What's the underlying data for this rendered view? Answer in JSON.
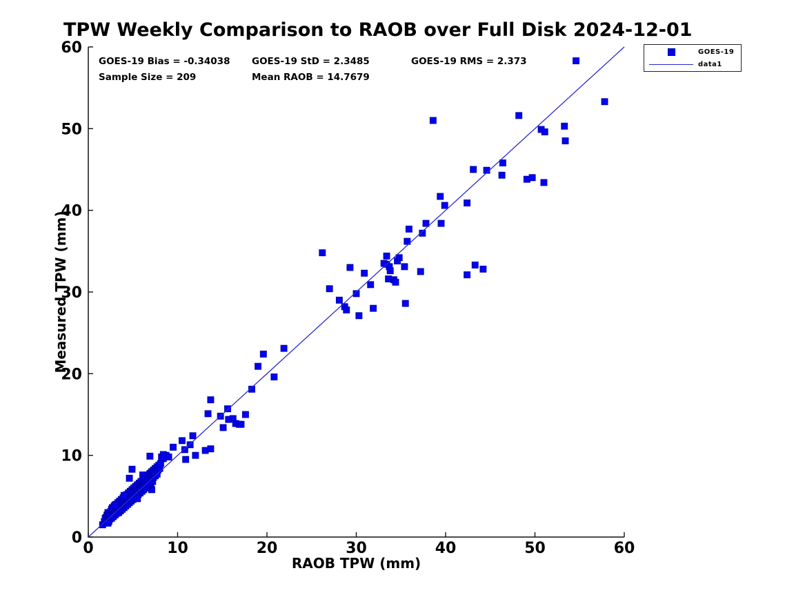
{
  "title": "TPW Weekly Comparison to RAOB over Full Disk 2024-12-01",
  "stats": {
    "bias": "GOES-19 Bias = -0.34038",
    "std": "GOES-19 StD = 2.3485",
    "rms": "GOES-19 RMS = 2.373",
    "sample": "Sample Size = 209",
    "mean_raob": "Mean RAOB = 14.7679"
  },
  "legend": {
    "entries": [
      {
        "label": "GOES-19",
        "symbol": "square-marker"
      },
      {
        "label": "data1",
        "symbol": "line"
      }
    ]
  },
  "colors": {
    "marker": "#0202f0",
    "marker_edge": "#0000a8",
    "line": "#2929d4",
    "axis": "#111111",
    "text": "#000000"
  },
  "chart_data": {
    "type": "scatter",
    "title": "TPW Weekly Comparison to RAOB over Full Disk 2024-12-01",
    "xlabel": "RAOB TPW (mm)",
    "ylabel": "Measured TPW (mm)",
    "xlim": [
      0,
      60
    ],
    "ylim": [
      0,
      60
    ],
    "xticks": [
      0,
      10,
      20,
      30,
      40,
      50,
      60
    ],
    "yticks": [
      0,
      10,
      20,
      30,
      40,
      50,
      60
    ],
    "grid": false,
    "legend_position": "outside-top-right",
    "stats_values": {
      "bias": -0.34038,
      "std": 2.3485,
      "rms": 2.373,
      "sample_size": 209,
      "mean_raob": 14.7679
    },
    "series": [
      {
        "name": "GOES-19",
        "type": "scatter",
        "marker": "square",
        "marker_size_px": 9,
        "color": "#0202f0",
        "edge_color": "#0000a8",
        "points": [
          [
            54.6,
            58.3
          ],
          [
            57.8,
            53.3
          ],
          [
            38.6,
            51.0
          ],
          [
            48.2,
            51.6
          ],
          [
            50.7,
            49.9
          ],
          [
            51.1,
            49.6
          ],
          [
            53.3,
            50.3
          ],
          [
            53.4,
            48.5
          ],
          [
            46.4,
            45.8
          ],
          [
            43.1,
            45.0
          ],
          [
            44.6,
            44.9
          ],
          [
            46.3,
            44.3
          ],
          [
            49.1,
            43.8
          ],
          [
            49.7,
            44.0
          ],
          [
            51.0,
            43.4
          ],
          [
            39.4,
            41.7
          ],
          [
            39.9,
            40.6
          ],
          [
            42.4,
            40.9
          ],
          [
            37.8,
            38.4
          ],
          [
            39.5,
            38.4
          ],
          [
            37.4,
            37.2
          ],
          [
            35.9,
            37.7
          ],
          [
            35.7,
            36.2
          ],
          [
            37.2,
            32.5
          ],
          [
            43.3,
            33.3
          ],
          [
            44.2,
            32.8
          ],
          [
            42.4,
            32.1
          ],
          [
            26.2,
            34.8
          ],
          [
            29.3,
            33.0
          ],
          [
            33.1,
            33.5
          ],
          [
            33.4,
            33.4
          ],
          [
            33.7,
            33.1
          ],
          [
            33.8,
            32.6
          ],
          [
            34.6,
            33.8
          ],
          [
            33.4,
            34.4
          ],
          [
            34.8,
            34.2
          ],
          [
            35.4,
            33.1
          ],
          [
            30.9,
            32.3
          ],
          [
            33.6,
            31.6
          ],
          [
            34.2,
            31.5
          ],
          [
            34.4,
            31.2
          ],
          [
            31.6,
            30.9
          ],
          [
            27.0,
            30.4
          ],
          [
            30.0,
            29.8
          ],
          [
            28.1,
            29.0
          ],
          [
            28.7,
            28.2
          ],
          [
            28.9,
            27.8
          ],
          [
            30.3,
            27.1
          ],
          [
            31.9,
            28.0
          ],
          [
            35.5,
            28.6
          ],
          [
            21.9,
            23.1
          ],
          [
            19.6,
            22.4
          ],
          [
            19.0,
            20.9
          ],
          [
            20.8,
            19.6
          ],
          [
            18.3,
            18.1
          ],
          [
            13.7,
            16.8
          ],
          [
            13.4,
            15.1
          ],
          [
            15.6,
            15.7
          ],
          [
            14.8,
            14.8
          ],
          [
            17.6,
            15.0
          ],
          [
            15.7,
            14.4
          ],
          [
            16.2,
            14.5
          ],
          [
            16.5,
            13.9
          ],
          [
            16.9,
            13.8
          ],
          [
            17.1,
            13.8
          ],
          [
            15.1,
            13.4
          ],
          [
            11.7,
            12.4
          ],
          [
            10.5,
            11.8
          ],
          [
            11.4,
            11.3
          ],
          [
            9.5,
            11.0
          ],
          [
            13.1,
            10.6
          ],
          [
            13.7,
            10.8
          ],
          [
            12.0,
            10.0
          ],
          [
            10.8,
            10.7
          ],
          [
            10.9,
            9.5
          ],
          [
            6.9,
            9.9
          ],
          [
            8.2,
            9.8
          ],
          [
            8.7,
            10.0
          ],
          [
            9.0,
            9.8
          ],
          [
            8.4,
            9.6
          ],
          [
            8.4,
            10.1
          ],
          [
            4.9,
            8.3
          ],
          [
            4.6,
            7.2
          ],
          [
            6.1,
            7.6
          ],
          [
            7.1,
            5.8
          ],
          [
            1.6,
            1.5
          ],
          [
            1.8,
            1.9
          ],
          [
            1.9,
            2.3
          ],
          [
            2.0,
            1.8
          ],
          [
            2.0,
            2.4
          ],
          [
            2.1,
            2.0
          ],
          [
            2.1,
            2.7
          ],
          [
            2.2,
            2.2
          ],
          [
            2.2,
            3.0
          ],
          [
            2.3,
            2.5
          ],
          [
            2.3,
            1.9
          ],
          [
            2.4,
            2.8
          ],
          [
            2.4,
            2.2
          ],
          [
            2.5,
            3.1
          ],
          [
            2.5,
            2.5
          ],
          [
            2.6,
            2.3
          ],
          [
            2.6,
            3.4
          ],
          [
            2.7,
            2.8
          ],
          [
            2.7,
            3.6
          ],
          [
            2.8,
            2.5
          ],
          [
            2.8,
            3.2
          ],
          [
            2.9,
            3.8
          ],
          [
            2.9,
            2.9
          ],
          [
            3.0,
            3.4
          ],
          [
            3.0,
            2.7
          ],
          [
            3.1,
            4.0
          ],
          [
            3.1,
            3.1
          ],
          [
            3.2,
            3.6
          ],
          [
            3.2,
            2.9
          ],
          [
            3.3,
            4.2
          ],
          [
            3.3,
            3.3
          ],
          [
            3.4,
            3.8
          ],
          [
            3.4,
            3.0
          ],
          [
            3.5,
            4.4
          ],
          [
            3.5,
            3.5
          ],
          [
            3.6,
            4.0
          ],
          [
            3.6,
            3.2
          ],
          [
            3.7,
            4.6
          ],
          [
            3.7,
            3.7
          ],
          [
            3.8,
            4.2
          ],
          [
            3.8,
            3.4
          ],
          [
            3.9,
            4.8
          ],
          [
            3.9,
            3.9
          ],
          [
            4.0,
            4.4
          ],
          [
            4.0,
            3.6
          ],
          [
            4.1,
            5.0
          ],
          [
            4.1,
            4.1
          ],
          [
            4.2,
            4.6
          ],
          [
            4.2,
            3.8
          ],
          [
            4.3,
            5.2
          ],
          [
            4.3,
            4.3
          ],
          [
            4.4,
            4.8
          ],
          [
            4.4,
            4.0
          ],
          [
            4.5,
            5.4
          ],
          [
            4.5,
            4.5
          ],
          [
            4.6,
            5.0
          ],
          [
            4.6,
            4.2
          ],
          [
            4.7,
            5.6
          ],
          [
            4.7,
            4.7
          ],
          [
            4.8,
            5.2
          ],
          [
            4.8,
            4.4
          ],
          [
            4.9,
            5.8
          ],
          [
            4.9,
            4.9
          ],
          [
            5.0,
            5.4
          ],
          [
            5.0,
            4.6
          ],
          [
            5.1,
            6.0
          ],
          [
            5.1,
            5.1
          ],
          [
            5.2,
            5.6
          ],
          [
            5.2,
            4.8
          ],
          [
            5.3,
            6.2
          ],
          [
            5.3,
            5.3
          ],
          [
            5.4,
            5.8
          ],
          [
            5.4,
            5.0
          ],
          [
            5.5,
            6.4
          ],
          [
            5.5,
            5.5
          ],
          [
            5.6,
            6.0
          ],
          [
            5.6,
            5.2
          ],
          [
            5.7,
            6.6
          ],
          [
            5.7,
            5.7
          ],
          [
            5.8,
            6.2
          ],
          [
            5.8,
            5.4
          ],
          [
            5.9,
            6.8
          ],
          [
            5.9,
            5.9
          ],
          [
            6.0,
            6.4
          ],
          [
            6.0,
            5.6
          ],
          [
            6.1,
            7.0
          ],
          [
            6.1,
            6.1
          ],
          [
            6.2,
            6.6
          ],
          [
            6.2,
            5.8
          ],
          [
            6.3,
            7.2
          ],
          [
            6.3,
            6.3
          ],
          [
            6.4,
            6.8
          ],
          [
            6.4,
            6.0
          ],
          [
            6.5,
            7.4
          ],
          [
            6.5,
            6.5
          ],
          [
            6.6,
            7.0
          ],
          [
            6.6,
            6.2
          ],
          [
            6.7,
            7.6
          ],
          [
            6.7,
            6.7
          ],
          [
            6.8,
            7.2
          ],
          [
            6.8,
            6.4
          ],
          [
            6.9,
            7.8
          ],
          [
            7.0,
            7.4
          ],
          [
            7.0,
            6.6
          ],
          [
            7.1,
            8.0
          ],
          [
            7.1,
            7.1
          ],
          [
            7.2,
            7.6
          ],
          [
            7.2,
            6.8
          ],
          [
            7.3,
            8.2
          ],
          [
            7.3,
            7.3
          ],
          [
            7.4,
            7.8
          ],
          [
            7.5,
            8.4
          ],
          [
            7.5,
            7.5
          ],
          [
            7.6,
            8.0
          ],
          [
            7.7,
            8.6
          ],
          [
            7.7,
            7.7
          ],
          [
            7.8,
            8.2
          ],
          [
            7.9,
            8.8
          ],
          [
            8.0,
            8.4
          ],
          [
            8.1,
            9.0
          ],
          [
            3.0,
            3.9
          ],
          [
            2.2,
            1.7
          ],
          [
            5.5,
            4.7
          ],
          [
            4.0,
            5.1
          ]
        ]
      },
      {
        "name": "data1",
        "type": "line",
        "color": "#2929d4",
        "points": [
          [
            0,
            0
          ],
          [
            60,
            60
          ]
        ]
      }
    ]
  }
}
